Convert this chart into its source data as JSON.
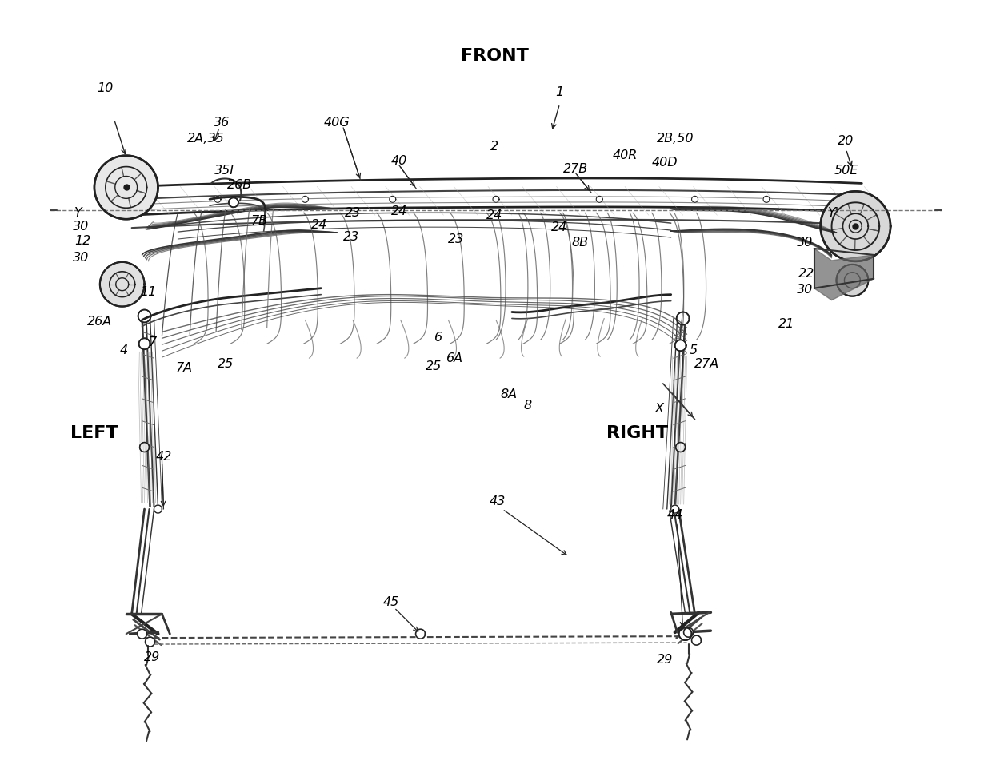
{
  "bg_color": "#ffffff",
  "line_color": "#1a1a1a",
  "figsize": [
    12.4,
    9.56
  ],
  "dpi": 100,
  "ref_labels": [
    [
      128,
      108,
      "10"
    ],
    [
      700,
      113,
      "1"
    ],
    [
      618,
      182,
      "2"
    ],
    [
      152,
      438,
      "4"
    ],
    [
      868,
      438,
      "5"
    ],
    [
      548,
      422,
      "6"
    ],
    [
      568,
      448,
      "6A"
    ],
    [
      188,
      428,
      "7"
    ],
    [
      228,
      460,
      "7A"
    ],
    [
      322,
      275,
      "7B"
    ],
    [
      660,
      508,
      "8"
    ],
    [
      636,
      494,
      "8A"
    ],
    [
      726,
      302,
      "8B"
    ],
    [
      183,
      365,
      "11"
    ],
    [
      100,
      300,
      "12"
    ],
    [
      1060,
      175,
      "20"
    ],
    [
      985,
      405,
      "21"
    ],
    [
      1010,
      342,
      "22"
    ],
    [
      438,
      295,
      "23"
    ],
    [
      440,
      265,
      "23"
    ],
    [
      570,
      298,
      "23"
    ],
    [
      398,
      280,
      "24"
    ],
    [
      498,
      263,
      "24"
    ],
    [
      618,
      268,
      "24"
    ],
    [
      700,
      283,
      "24"
    ],
    [
      280,
      455,
      "25"
    ],
    [
      542,
      458,
      "25"
    ],
    [
      122,
      402,
      "26A"
    ],
    [
      298,
      230,
      "26B"
    ],
    [
      885,
      455,
      "27A"
    ],
    [
      720,
      210,
      "27B"
    ],
    [
      188,
      825,
      "29"
    ],
    [
      832,
      828,
      "29"
    ],
    [
      95,
      265,
      "Y"
    ],
    [
      1045,
      265,
      "Y'"
    ],
    [
      275,
      152,
      "36"
    ],
    [
      498,
      200,
      "40"
    ],
    [
      420,
      152,
      "40G"
    ],
    [
      782,
      193,
      "40R"
    ],
    [
      832,
      202,
      "40D"
    ],
    [
      202,
      572,
      "42"
    ],
    [
      622,
      628,
      "43"
    ],
    [
      845,
      645,
      "44"
    ],
    [
      488,
      755,
      "45"
    ],
    [
      1060,
      212,
      "50E"
    ],
    [
      825,
      512,
      "X"
    ],
    [
      255,
      172,
      "2A,35"
    ],
    [
      845,
      172,
      "2B,50"
    ],
    [
      278,
      212,
      "35I"
    ],
    [
      98,
      282,
      "30"
    ],
    [
      98,
      322,
      "30"
    ],
    [
      1008,
      302,
      "30"
    ],
    [
      1008,
      362,
      "30"
    ]
  ],
  "dir_labels": [
    [
      618,
      68,
      "FRONT"
    ],
    [
      115,
      542,
      "LEFT"
    ],
    [
      798,
      542,
      "RIGHT"
    ]
  ]
}
